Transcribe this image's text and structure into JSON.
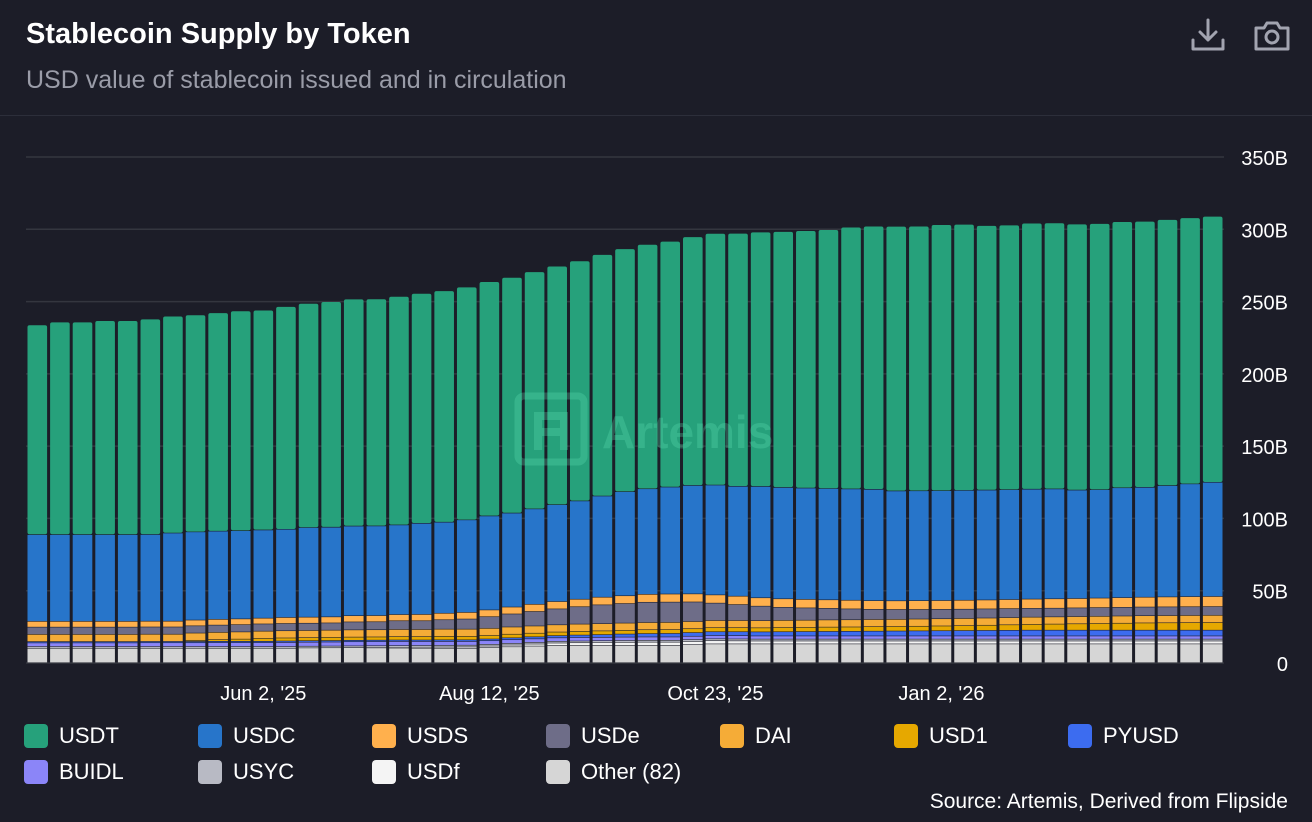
{
  "header": {
    "title": "Stablecoin Supply by Token",
    "subtitle": "USD value of stablecoin issued and in circulation",
    "download_icon": "download-icon",
    "camera_icon": "camera-icon"
  },
  "watermark": "Artemis",
  "source": "Source: Artemis, Derived from Flipside",
  "colors": {
    "background": "#1c1d28",
    "grid": "#34363f",
    "USDT": "#26a17b",
    "USDC": "#2775ca",
    "USDS": "#ffb04d",
    "USDe": "#6e6d88",
    "DAI": "#f5ac37",
    "USD1": "#e6a800",
    "PYUSD": "#3c6cf0",
    "BUIDL": "#8b85f8",
    "USYC": "#b8bac4",
    "USDf": "#f4f4f4",
    "Other": "#d6d6d6"
  },
  "chart_data": {
    "type": "bar",
    "stacked": true,
    "title": "Stablecoin Supply by Token",
    "subtitle": "USD value of stablecoin issued and in circulation",
    "unit": "USD",
    "ylim": [
      0,
      350
    ],
    "yticks": [
      0,
      50,
      100,
      150,
      200,
      250,
      300,
      350
    ],
    "ytick_labels": [
      "0",
      "50B",
      "100B",
      "150B",
      "200B",
      "250B",
      "300B",
      "350B"
    ],
    "xtick_labels": [
      {
        "label": "Jun 2, '25",
        "index": 10
      },
      {
        "label": "Aug 12, '25",
        "index": 20
      },
      {
        "label": "Oct 23, '25",
        "index": 30
      },
      {
        "label": "Jan 2, '26",
        "index": 40
      }
    ],
    "legend_position": "bottom",
    "grid": true,
    "series": [
      {
        "name": "USDT",
        "values": [
          145,
          147,
          147,
          148,
          148,
          149,
          150,
          150,
          151,
          152,
          152,
          154,
          155,
          156,
          157,
          157,
          158,
          159,
          160,
          161,
          162,
          163,
          164,
          165,
          166,
          167,
          168,
          169,
          170,
          172,
          174,
          175,
          176,
          177,
          178,
          179,
          181,
          182,
          183,
          183,
          184,
          184,
          183,
          183,
          184,
          184,
          184,
          184,
          184,
          184,
          184,
          184,
          184
        ]
      },
      {
        "name": "USDC",
        "values": [
          60,
          60,
          60,
          60,
          60,
          60,
          61,
          61,
          61,
          61,
          61,
          61,
          62,
          62,
          62,
          62,
          62,
          63,
          63,
          64,
          65,
          65,
          66,
          67,
          68,
          70,
          72,
          73,
          74,
          75,
          76,
          76,
          77,
          77,
          77,
          77,
          77,
          77,
          76,
          76,
          76,
          76,
          76,
          76,
          76,
          76,
          75,
          75,
          76,
          76,
          77,
          78,
          79
        ]
      },
      {
        "name": "USDS",
        "values": [
          4.0,
          4.0,
          4.0,
          4.0,
          4.0,
          4.0,
          4.0,
          4.0,
          4.0,
          4.0,
          4.0,
          4.2,
          4.2,
          4.2,
          4.3,
          4.3,
          4.3,
          4.4,
          4.5,
          4.6,
          4.7,
          4.8,
          5.0,
          5.1,
          5.2,
          5.3,
          5.4,
          5.5,
          5.6,
          5.6,
          5.7,
          5.8,
          5.8,
          5.9,
          5.9,
          5.9,
          6.0,
          6.0,
          6.0,
          6.1,
          6.1,
          6.2,
          6.2,
          6.3,
          6.4,
          6.5,
          6.5,
          6.6,
          6.7,
          6.8,
          6.9,
          7.0,
          7.0
        ]
      },
      {
        "name": "USDe",
        "values": [
          5,
          5,
          5,
          5,
          5,
          5,
          5,
          5,
          5,
          5,
          5,
          5,
          5,
          5,
          5.5,
          5.5,
          6,
          6,
          6.5,
          7,
          8,
          9,
          10,
          11,
          12,
          13,
          13.5,
          14,
          14,
          13.5,
          12,
          11,
          10,
          9,
          8.5,
          8,
          7.5,
          7,
          6.8,
          6.6,
          6.5,
          6.4,
          6.3,
          6.2,
          6.1,
          6.0,
          6.0,
          6.0,
          6.0,
          6.0,
          6.0,
          6.0,
          6.0
        ]
      },
      {
        "name": "DAI",
        "values": [
          5.0,
          5.0,
          5.0,
          5.0,
          5.0,
          5.0,
          5.0,
          5.0,
          5.0,
          5.0,
          5.0,
          5.0,
          5.0,
          5.0,
          5.0,
          5.0,
          5.0,
          5.0,
          5.0,
          5.0,
          5.0,
          5.0,
          5.0,
          5.0,
          5.0,
          5.0,
          5.0,
          5.0,
          5.0,
          5.0,
          5.0,
          5.0,
          5.0,
          5.0,
          5.0,
          5.0,
          5.0,
          5.0,
          5.0,
          5.0,
          5.0,
          5.0,
          5.0,
          5.0,
          5.0,
          5.0,
          5.0,
          5.0,
          5.0,
          5.0,
          5.0,
          5.0,
          5.0
        ]
      },
      {
        "name": "USD1",
        "values": [
          0,
          0,
          0,
          0,
          0,
          0,
          0,
          0.8,
          1.2,
          1.5,
          2.0,
          2.1,
          2.1,
          2.2,
          2.2,
          2.2,
          2.3,
          2.3,
          2.4,
          2.4,
          2.4,
          2.5,
          2.5,
          2.5,
          2.6,
          2.6,
          2.6,
          2.7,
          2.7,
          2.7,
          2.8,
          2.8,
          2.8,
          2.9,
          2.9,
          3.0,
          3.0,
          3.1,
          3.1,
          3.2,
          3.3,
          3.4,
          3.6,
          3.8,
          4.0,
          4.2,
          4.4,
          4.6,
          4.8,
          5.0,
          5.1,
          5.2,
          5.3
        ]
      },
      {
        "name": "PYUSD",
        "values": [
          0.9,
          0.9,
          0.9,
          0.9,
          0.9,
          0.9,
          0.9,
          0.9,
          0.9,
          0.9,
          0.9,
          1.0,
          1.0,
          1.0,
          1.0,
          1.0,
          1.0,
          1.0,
          1.1,
          1.1,
          1.2,
          1.3,
          1.4,
          1.5,
          1.7,
          1.9,
          2.1,
          2.3,
          2.4,
          2.5,
          2.6,
          2.7,
          2.8,
          2.9,
          3.0,
          3.1,
          3.2,
          3.3,
          3.4,
          3.5,
          3.6,
          3.7,
          3.8,
          3.9,
          4.0,
          4.0,
          4.0,
          4.0,
          4.0,
          4.0,
          4.0,
          4.0,
          4.0
        ]
      },
      {
        "name": "BUIDL",
        "values": [
          2.5,
          2.5,
          2.5,
          2.5,
          2.5,
          2.6,
          2.6,
          2.6,
          2.7,
          2.7,
          2.7,
          2.8,
          2.8,
          2.8,
          2.9,
          2.9,
          2.9,
          2.8,
          2.7,
          2.6,
          2.5,
          2.5,
          2.4,
          2.4,
          2.4,
          2.3,
          2.3,
          2.3,
          2.3,
          2.3,
          2.3,
          2.3,
          2.2,
          2.2,
          2.2,
          2.2,
          2.2,
          2.2,
          2.2,
          2.2,
          2.2,
          2.2,
          2.2,
          2.2,
          2.2,
          2.2,
          2.2,
          2.2,
          2.2,
          2.2,
          2.2,
          2.2,
          2.2
        ]
      },
      {
        "name": "USYC",
        "values": [
          1.2,
          1.2,
          1.2,
          1.2,
          1.2,
          1.2,
          1.2,
          1.2,
          1.2,
          1.2,
          1.2,
          1.2,
          1.2,
          1.2,
          1.2,
          1.2,
          1.2,
          1.2,
          1.2,
          1.2,
          1.2,
          1.2,
          1.2,
          1.2,
          1.2,
          1.2,
          1.3,
          1.3,
          1.3,
          1.3,
          1.3,
          1.3,
          1.3,
          1.3,
          1.3,
          1.3,
          1.3,
          1.3,
          1.3,
          1.3,
          1.3,
          1.3,
          1.3,
          1.3,
          1.3,
          1.3,
          1.3,
          1.3,
          1.3,
          1.3,
          1.3,
          1.3,
          1.3
        ]
      },
      {
        "name": "USDf",
        "values": [
          0,
          0,
          0,
          0,
          0,
          0,
          0,
          0,
          0,
          0,
          0,
          0,
          0.2,
          0.3,
          0.4,
          0.5,
          0.6,
          0.7,
          0.8,
          0.9,
          1.0,
          1.2,
          1.4,
          1.6,
          1.8,
          2.0,
          2.1,
          2.2,
          2.2,
          2.2,
          2.2,
          2.1,
          2.0,
          2.0,
          2.0,
          2.0,
          2.0,
          2.0,
          2.0,
          2.0,
          2.0,
          2.0,
          2.0,
          2.0,
          2.0,
          2.0,
          2.0,
          2.0,
          2.0,
          2.0,
          2.0,
          2.0,
          2.0
        ]
      },
      {
        "name": "Other",
        "values": [
          10,
          10,
          10,
          10,
          10,
          10,
          10,
          10,
          10,
          10,
          10,
          10,
          10,
          10,
          10,
          10,
          10,
          10,
          10,
          10,
          10.5,
          11,
          11.5,
          12,
          12,
          12,
          12,
          12,
          12,
          12.5,
          13,
          13,
          13,
          13,
          13,
          13,
          13,
          13,
          13,
          13,
          13,
          13,
          13,
          13,
          13,
          13,
          13,
          13,
          13,
          13,
          13,
          13,
          13
        ]
      }
    ]
  },
  "legend": [
    {
      "label": "USDT",
      "color_key": "USDT"
    },
    {
      "label": "USDC",
      "color_key": "USDC"
    },
    {
      "label": "USDS",
      "color_key": "USDS"
    },
    {
      "label": "USDe",
      "color_key": "USDe"
    },
    {
      "label": "DAI",
      "color_key": "DAI"
    },
    {
      "label": "USD1",
      "color_key": "USD1"
    },
    {
      "label": "PYUSD",
      "color_key": "PYUSD"
    },
    {
      "label": "BUIDL",
      "color_key": "BUIDL"
    },
    {
      "label": "USYC",
      "color_key": "USYC"
    },
    {
      "label": "USDf",
      "color_key": "USDf"
    },
    {
      "label": "Other (82)",
      "color_key": "Other"
    }
  ]
}
